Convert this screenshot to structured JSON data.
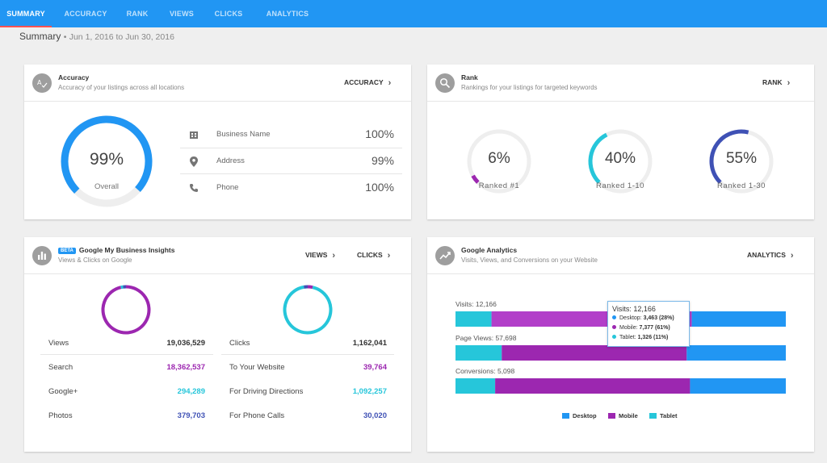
{
  "nav": {
    "tabs": [
      {
        "label": "SUMMARY",
        "active": true
      },
      {
        "label": "ACCURACY",
        "active": false
      },
      {
        "label": "RANK",
        "active": false
      },
      {
        "label": "VIEWS",
        "active": false
      },
      {
        "label": "CLICKS",
        "active": false
      },
      {
        "label": "ANALYTICS",
        "active": false
      }
    ]
  },
  "summary": {
    "title": "Summary",
    "separator": "•",
    "date_range": "Jun 1, 2016 to Jun 30, 2016"
  },
  "accuracy": {
    "title": "Accuracy",
    "subtitle": "Accuracy of your listings across all locations",
    "link": "ACCURACY",
    "gauge": {
      "value": "99%",
      "label": "Overall",
      "fraction": 0.99
    },
    "rows": [
      {
        "icon": "building-icon",
        "label": "Business Name",
        "value": "100%"
      },
      {
        "icon": "location-pin-icon",
        "label": "Address",
        "value": "99%"
      },
      {
        "icon": "phone-icon",
        "label": "Phone",
        "value": "100%"
      }
    ]
  },
  "rank": {
    "title": "Rank",
    "subtitle": "Rankings for your listings for targeted keywords",
    "link": "RANK",
    "gauges": [
      {
        "value": "6%",
        "label": "Ranked #1",
        "fraction": 0.06,
        "color": "#9c27b0"
      },
      {
        "value": "40%",
        "label": "Ranked 1-10",
        "fraction": 0.4,
        "color": "#26c6da"
      },
      {
        "value": "55%",
        "label": "Ranked 1-30",
        "fraction": 0.55,
        "color": "#3f51b5"
      }
    ]
  },
  "gmb": {
    "badge": "BETA",
    "title": "Google My Business Insights",
    "subtitle": "Views & Clicks on Google",
    "links": {
      "views": "VIEWS",
      "clicks": "CLICKS"
    },
    "views": {
      "total_label": "Views",
      "total_value": "19,036,529",
      "rows": [
        {
          "label": "Search",
          "value": "18,362,537",
          "color": "#9c27b0"
        },
        {
          "label": "Google+",
          "value": "294,289",
          "color": "#26c6da"
        },
        {
          "label": "Photos",
          "value": "379,703",
          "color": "#3f51b5"
        }
      ]
    },
    "clicks": {
      "total_label": "Clicks",
      "total_value": "1,162,041",
      "rows": [
        {
          "label": "To Your Website",
          "value": "39,764",
          "color": "#9c27b0"
        },
        {
          "label": "For Driving Directions",
          "value": "1,092,257",
          "color": "#26c6da"
        },
        {
          "label": "For Phone Calls",
          "value": "30,020",
          "color": "#3f51b5"
        }
      ]
    }
  },
  "analytics": {
    "title": "Google Analytics",
    "subtitle": "Visits, Views, and Conversions on your Website",
    "link": "ANALYTICS",
    "tooltip": {
      "title": "Visits: 12,166",
      "rows": [
        {
          "label": "Desktop:",
          "value": "3,463 (28%)",
          "color": "#2196f3"
        },
        {
          "label": "Mobile:",
          "value": "7,377 (61%)",
          "color": "#9c27b0"
        },
        {
          "label": "Tablet:",
          "value": "1,326 (11%)",
          "color": "#26c6da"
        }
      ]
    }
  },
  "chart_data": {
    "type": "bar",
    "orientation": "horizontal-stacked",
    "stack_order": [
      "Tablet",
      "Mobile",
      "Desktop"
    ],
    "categories": [
      "Visits",
      "Page Views",
      "Conversions"
    ],
    "category_labels": [
      "Visits: 12,166",
      "Page Views: 57,698",
      "Conversions: 5,098"
    ],
    "totals": [
      12166,
      57698,
      5098
    ],
    "series": [
      {
        "name": "Desktop",
        "color": "#2196f3",
        "values": [
          3463,
          17309,
          1478
        ]
      },
      {
        "name": "Mobile",
        "color": "#9c27b0",
        "values": [
          7377,
          32311,
          3008
        ]
      },
      {
        "name": "Tablet",
        "color": "#26c6da",
        "values": [
          1326,
          8078,
          612
        ]
      }
    ],
    "highlighted_series": "Mobile",
    "highlighted_category": "Visits",
    "legend_position": "bottom",
    "grid": false
  }
}
